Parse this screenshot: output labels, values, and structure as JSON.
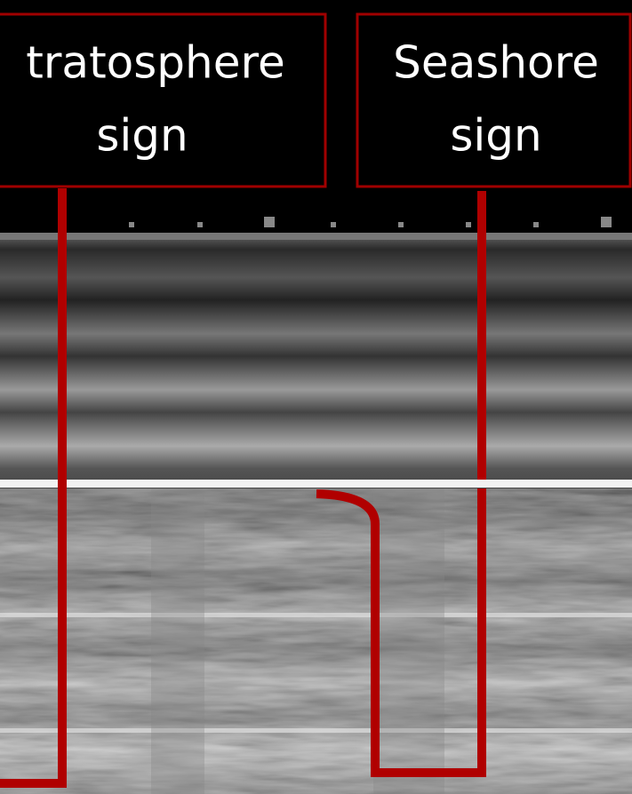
{
  "labels": [
    {
      "lines": [
        "tratosphere",
        "sign"
      ]
    },
    {
      "lines": [
        "Seashore",
        "sign"
      ]
    }
  ],
  "scale_marker": "3"
}
